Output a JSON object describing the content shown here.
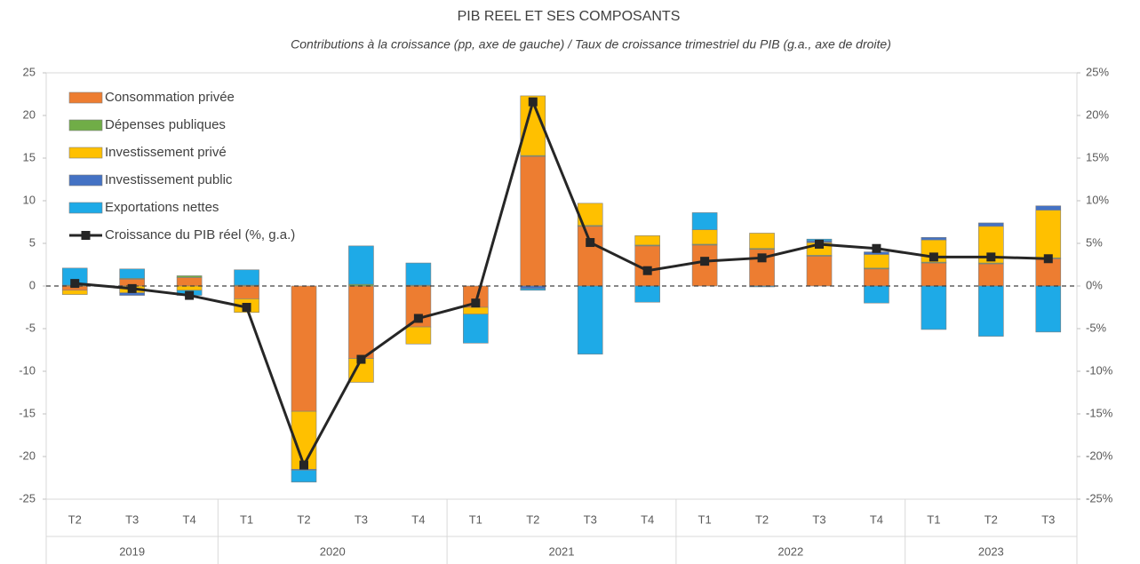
{
  "chart_data": {
    "type": "bar",
    "stacked": true,
    "title": "PIB REEL ET SES COMPOSANTS",
    "subtitle": "Contributions à la croissance (pp, axe de gauche) / Taux de croissance trimestriel du PIB (g.a., axe de droite)",
    "categories": [
      "T2",
      "T3",
      "T4",
      "T1",
      "T2",
      "T3",
      "T4",
      "T1",
      "T2",
      "T3",
      "T4",
      "T1",
      "T2",
      "T3",
      "T4",
      "T1",
      "T2",
      "T3"
    ],
    "years": [
      "2019",
      "2020",
      "2021",
      "2022",
      "2023"
    ],
    "ylim": [
      -25,
      25
    ],
    "yticks": [
      -25,
      -20,
      -15,
      -10,
      -5,
      0,
      5,
      10,
      15,
      20,
      25
    ],
    "y2lim": [
      -25,
      25
    ],
    "y2ticks": [
      {
        "value": -25,
        "label": "-25%"
      },
      {
        "value": -20,
        "label": "-20%"
      },
      {
        "value": -15,
        "label": "-15%"
      },
      {
        "value": -10,
        "label": "-10%"
      },
      {
        "value": -5,
        "label": "-5%"
      },
      {
        "value": 0,
        "label": "0%"
      },
      {
        "value": 5,
        "label": "5%"
      },
      {
        "value": 10,
        "label": "10%"
      },
      {
        "value": 15,
        "label": "15%"
      },
      {
        "value": 20,
        "label": "20%"
      },
      {
        "value": 25,
        "label": "25%"
      }
    ],
    "legend": "top-left",
    "series": [
      {
        "name": "Consommation privée",
        "color": "#ED7D31",
        "values": [
          -0.5,
          0.8,
          1.0,
          -1.5,
          -14.7,
          -8.5,
          -4.8,
          -2.5,
          15.2,
          7.0,
          4.7,
          4.8,
          4.3,
          3.5,
          2.0,
          2.7,
          2.6,
          3.2
        ]
      },
      {
        "name": "Dépenses publiques",
        "color": "#70AD47",
        "values": [
          0.1,
          0.1,
          0.2,
          0.1,
          0,
          0.2,
          0.1,
          0,
          0.1,
          0.1,
          0.1,
          0.1,
          0.1,
          0.1,
          0.1,
          0.1,
          0.1,
          0.1
        ]
      },
      {
        "name": "Investissement privé",
        "color": "#FFC000",
        "values": [
          -0.5,
          -0.8,
          -0.5,
          -1.6,
          -6.8,
          -2.8,
          -2.0,
          -0.8,
          7.0,
          2.6,
          1.1,
          1.7,
          1.8,
          1.5,
          1.6,
          2.6,
          4.3,
          5.6
        ]
      },
      {
        "name": "Investissement public",
        "color": "#4472C4",
        "values": [
          0,
          -0.3,
          0,
          0,
          -0.1,
          0,
          0,
          0,
          -0.3,
          0,
          0,
          0,
          0,
          0.2,
          0.3,
          0.3,
          0.4,
          0.5
        ]
      },
      {
        "name": "Exportations nettes",
        "color": "#1EAAE7",
        "values": [
          2.0,
          1.1,
          -0.6,
          1.8,
          -1.4,
          4.5,
          2.6,
          -3.4,
          -0.2,
          -8.0,
          -1.9,
          2.0,
          -0.1,
          0.2,
          -2.0,
          -5.1,
          -5.9,
          -5.4
        ]
      },
      {
        "name": "Croissance du PIB réel (%, g.a.)",
        "color": "#262626",
        "type": "line",
        "axis": "y2",
        "values": [
          0.3,
          -0.3,
          -1.1,
          -2.5,
          -21.0,
          -8.6,
          -3.8,
          -2.0,
          21.6,
          5.1,
          1.8,
          2.9,
          3.3,
          4.9,
          4.4,
          3.4,
          3.4,
          3.2
        ]
      }
    ]
  }
}
